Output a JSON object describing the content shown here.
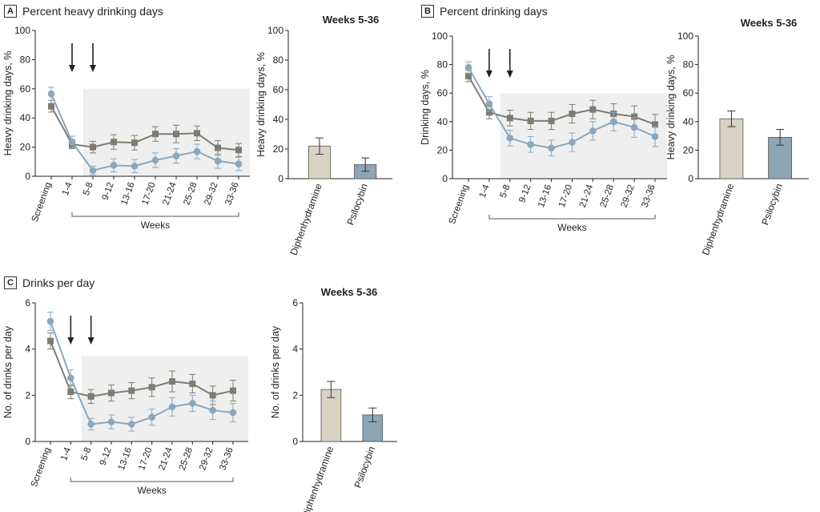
{
  "colors": {
    "diphenhydramine": "#7f7b72",
    "psilocybin": "#8aa7bd",
    "bar_diphenhydramine": "#d8d3c2",
    "bar_psilocybin": "#8da5b5",
    "shade": "#efefef",
    "axis": "#222222"
  },
  "panels": {
    "A": {
      "letter": "A",
      "title": "Percent heavy drinking days"
    },
    "B": {
      "letter": "B",
      "title": "Percent drinking days"
    },
    "C": {
      "letter": "C",
      "title": "Drinks per day"
    }
  },
  "chart_data": [
    {
      "id": "A-line",
      "type": "line",
      "ylabel": "Heavy drinking days, %",
      "xlabel": "Weeks",
      "ylim": [
        0,
        100
      ],
      "yticks": [
        0,
        20,
        40,
        60,
        80,
        100
      ],
      "categories": [
        "Screening",
        "1-4",
        "5-8",
        "9-12",
        "13-16",
        "17-20",
        "21-24",
        "25-28",
        "29-32",
        "33-36"
      ],
      "arrows_at": [
        "1-4",
        "5-8"
      ],
      "shaded_from": "5-8",
      "shade_top": 60,
      "series": [
        {
          "name": "Diphenhydramine",
          "marker": "square",
          "values": [
            48,
            22,
            20,
            23.5,
            23,
            29,
            29,
            29.5,
            19.5,
            18
          ],
          "err": [
            4,
            3,
            4,
            5,
            5,
            5,
            6,
            5,
            5,
            4.5
          ]
        },
        {
          "name": "Psilocybin",
          "marker": "circle",
          "values": [
            56.5,
            23.5,
            4,
            7.5,
            7,
            11,
            14,
            17,
            10.5,
            8.5
          ],
          "err": [
            4.5,
            4,
            3,
            4.5,
            4.5,
            5,
            5,
            5,
            5,
            4.5
          ]
        }
      ]
    },
    {
      "id": "A-bar",
      "type": "bar",
      "title": "Weeks 5-36",
      "ylabel": "Heavy drinking days, %",
      "ylim": [
        0,
        100
      ],
      "yticks": [
        0,
        20,
        40,
        60,
        80,
        100
      ],
      "categories": [
        "Diphenhydramine",
        "Psilocybin"
      ],
      "values": [
        22,
        9.5
      ],
      "err": [
        5.5,
        4.5
      ]
    },
    {
      "id": "B-line",
      "type": "line",
      "ylabel": "Drinking days, %",
      "xlabel": "Weeks",
      "ylim": [
        0,
        100
      ],
      "yticks": [
        0,
        20,
        40,
        60,
        80,
        100
      ],
      "categories": [
        "Screening",
        "1-4",
        "5-8",
        "9-12",
        "13-16",
        "17-20",
        "21-24",
        "25-28",
        "29-32",
        "33-36"
      ],
      "arrows_at": [
        "1-4",
        "5-8"
      ],
      "shaded_from": "5-8",
      "shade_top": 60,
      "series": [
        {
          "name": "Diphenhydramine",
          "marker": "square",
          "values": [
            72,
            46.5,
            42.5,
            40.5,
            40.5,
            45.5,
            48.5,
            45.5,
            43.5,
            38
          ],
          "err": [
            4,
            4.5,
            5.5,
            6,
            6,
            6.5,
            6.5,
            7,
            7.5,
            7
          ]
        },
        {
          "name": "Psilocybin",
          "marker": "circle",
          "values": [
            78,
            52.5,
            28.5,
            24,
            21.5,
            25.5,
            33.5,
            40,
            36,
            29.5
          ],
          "err": [
            4,
            5,
            5.5,
            5.5,
            5.5,
            6.5,
            6.5,
            6.5,
            7,
            7
          ]
        }
      ]
    },
    {
      "id": "B-bar",
      "type": "bar",
      "title": "Weeks 5-36",
      "ylabel": "Heavy drinking days, %",
      "ylim": [
        0,
        100
      ],
      "yticks": [
        0,
        20,
        40,
        60,
        80,
        100
      ],
      "categories": [
        "Diphenhydramine",
        "Psilocybin"
      ],
      "values": [
        42,
        29
      ],
      "err": [
        5.5,
        5.5
      ]
    },
    {
      "id": "C-line",
      "type": "line",
      "ylabel": "No. of drinks per day",
      "xlabel": "Weeks",
      "ylim": [
        0,
        6
      ],
      "yticks": [
        0,
        2,
        4,
        6
      ],
      "categories": [
        "Screening",
        "1-4",
        "5-8",
        "9-12",
        "13-16",
        "17-20",
        "21-24",
        "25-28",
        "29-32",
        "33-36"
      ],
      "arrows_at": [
        "1-4",
        "5-8"
      ],
      "shaded_from": "5-8",
      "shade_top": 3.7,
      "series": [
        {
          "name": "Diphenhydramine",
          "marker": "square",
          "values": [
            4.35,
            2.15,
            1.95,
            2.1,
            2.2,
            2.35,
            2.6,
            2.5,
            2.0,
            2.2
          ],
          "err": [
            0.35,
            0.3,
            0.3,
            0.35,
            0.35,
            0.4,
            0.45,
            0.4,
            0.4,
            0.45
          ]
        },
        {
          "name": "Psilocybin",
          "marker": "circle",
          "values": [
            5.2,
            2.75,
            0.75,
            0.85,
            0.75,
            1.05,
            1.5,
            1.65,
            1.35,
            1.25
          ],
          "err": [
            0.4,
            0.35,
            0.25,
            0.3,
            0.3,
            0.35,
            0.4,
            0.35,
            0.4,
            0.4
          ]
        }
      ]
    },
    {
      "id": "C-bar",
      "type": "bar",
      "title": "Weeks 5-36",
      "ylabel": "No. of drinks per day",
      "ylim": [
        0,
        6
      ],
      "yticks": [
        0,
        2,
        4,
        6
      ],
      "categories": [
        "Diphenhydramine",
        "Psilocybin"
      ],
      "values": [
        2.25,
        1.15
      ],
      "err": [
        0.35,
        0.3
      ]
    }
  ]
}
